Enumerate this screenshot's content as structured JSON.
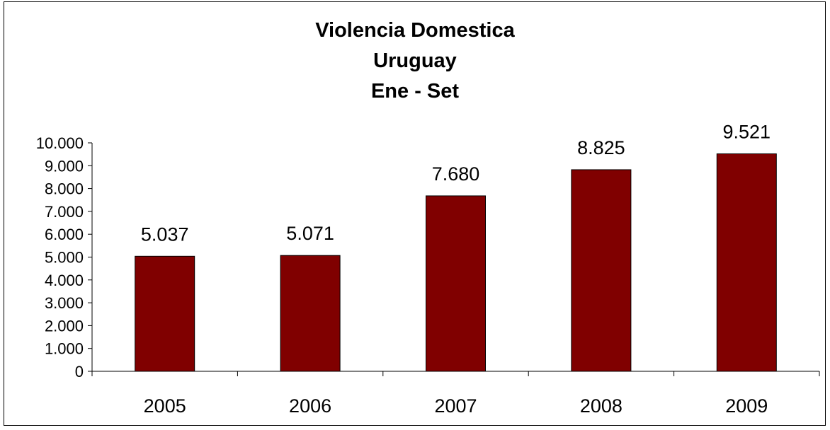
{
  "chart_data": {
    "type": "bar",
    "title_lines": [
      "Violencia Domestica",
      "Uruguay",
      "Ene - Set"
    ],
    "categories": [
      "2005",
      "2006",
      "2007",
      "2008",
      "2009"
    ],
    "values": [
      5037,
      5071,
      7680,
      8825,
      9521
    ],
    "value_labels": [
      "5.037",
      "5.071",
      "7.680",
      "8.825",
      "9.521"
    ],
    "y_ticks": [
      "0",
      "1.000",
      "2.000",
      "3.000",
      "4.000",
      "5.000",
      "6.000",
      "7.000",
      "8.000",
      "9.000",
      "10.000"
    ],
    "ylim": [
      0,
      10000
    ],
    "xlabel": "",
    "ylabel": "",
    "grid": false,
    "legend": "none",
    "bar_color": "#800000"
  }
}
